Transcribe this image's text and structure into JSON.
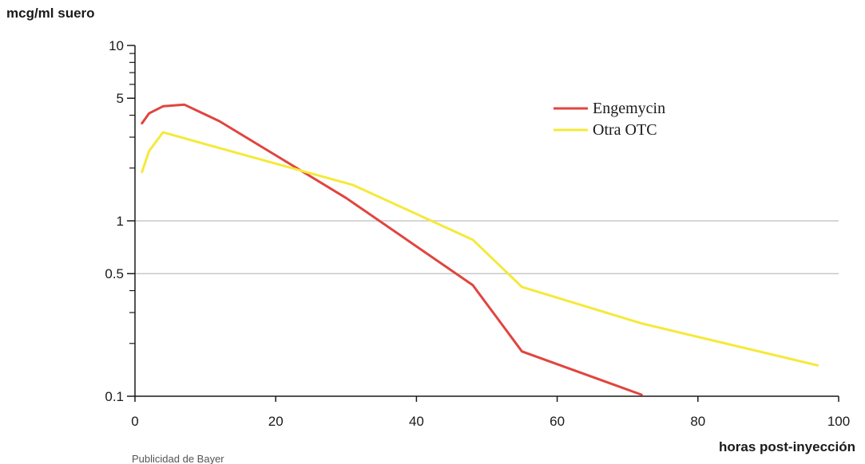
{
  "chart_data": {
    "type": "line",
    "title": "",
    "ylabel": "mcg/ml suero",
    "xlabel": "horas post-inyección",
    "x_scale": "linear",
    "y_scale": "log",
    "xlim": [
      0,
      100
    ],
    "ylim": [
      0.1,
      10
    ],
    "x_ticks": [
      0,
      20,
      40,
      60,
      80,
      100
    ],
    "x_tick_labels": [
      "0",
      "20",
      "40",
      "60",
      "80",
      "100"
    ],
    "y_ticks": [
      0.1,
      0.5,
      1,
      5,
      10
    ],
    "y_tick_labels": [
      "0.1",
      "0.5",
      "1",
      "5",
      "10"
    ],
    "y_minor_ticks": [
      0.2,
      0.3,
      0.4,
      2,
      3,
      4,
      6,
      7,
      8,
      9
    ],
    "gridlines_y": [
      0.5,
      1
    ],
    "legend_position": "top-right",
    "series": [
      {
        "name": "Engemycin",
        "color": "#e0453e",
        "points": [
          [
            1,
            3.6
          ],
          [
            2,
            4.1
          ],
          [
            4,
            4.5
          ],
          [
            7,
            4.6
          ],
          [
            12,
            3.7
          ],
          [
            30,
            1.35
          ],
          [
            48,
            0.43
          ],
          [
            55,
            0.18
          ],
          [
            72,
            0.102
          ]
        ]
      },
      {
        "name": "Otra OTC",
        "color": "#f5e93a",
        "points": [
          [
            1,
            1.9
          ],
          [
            2,
            2.5
          ],
          [
            4,
            3.2
          ],
          [
            12,
            2.6
          ],
          [
            31,
            1.6
          ],
          [
            48,
            0.78
          ],
          [
            55,
            0.42
          ],
          [
            72,
            0.26
          ],
          [
            97,
            0.15
          ]
        ]
      }
    ],
    "footnote": "Publicidad de Bayer"
  }
}
